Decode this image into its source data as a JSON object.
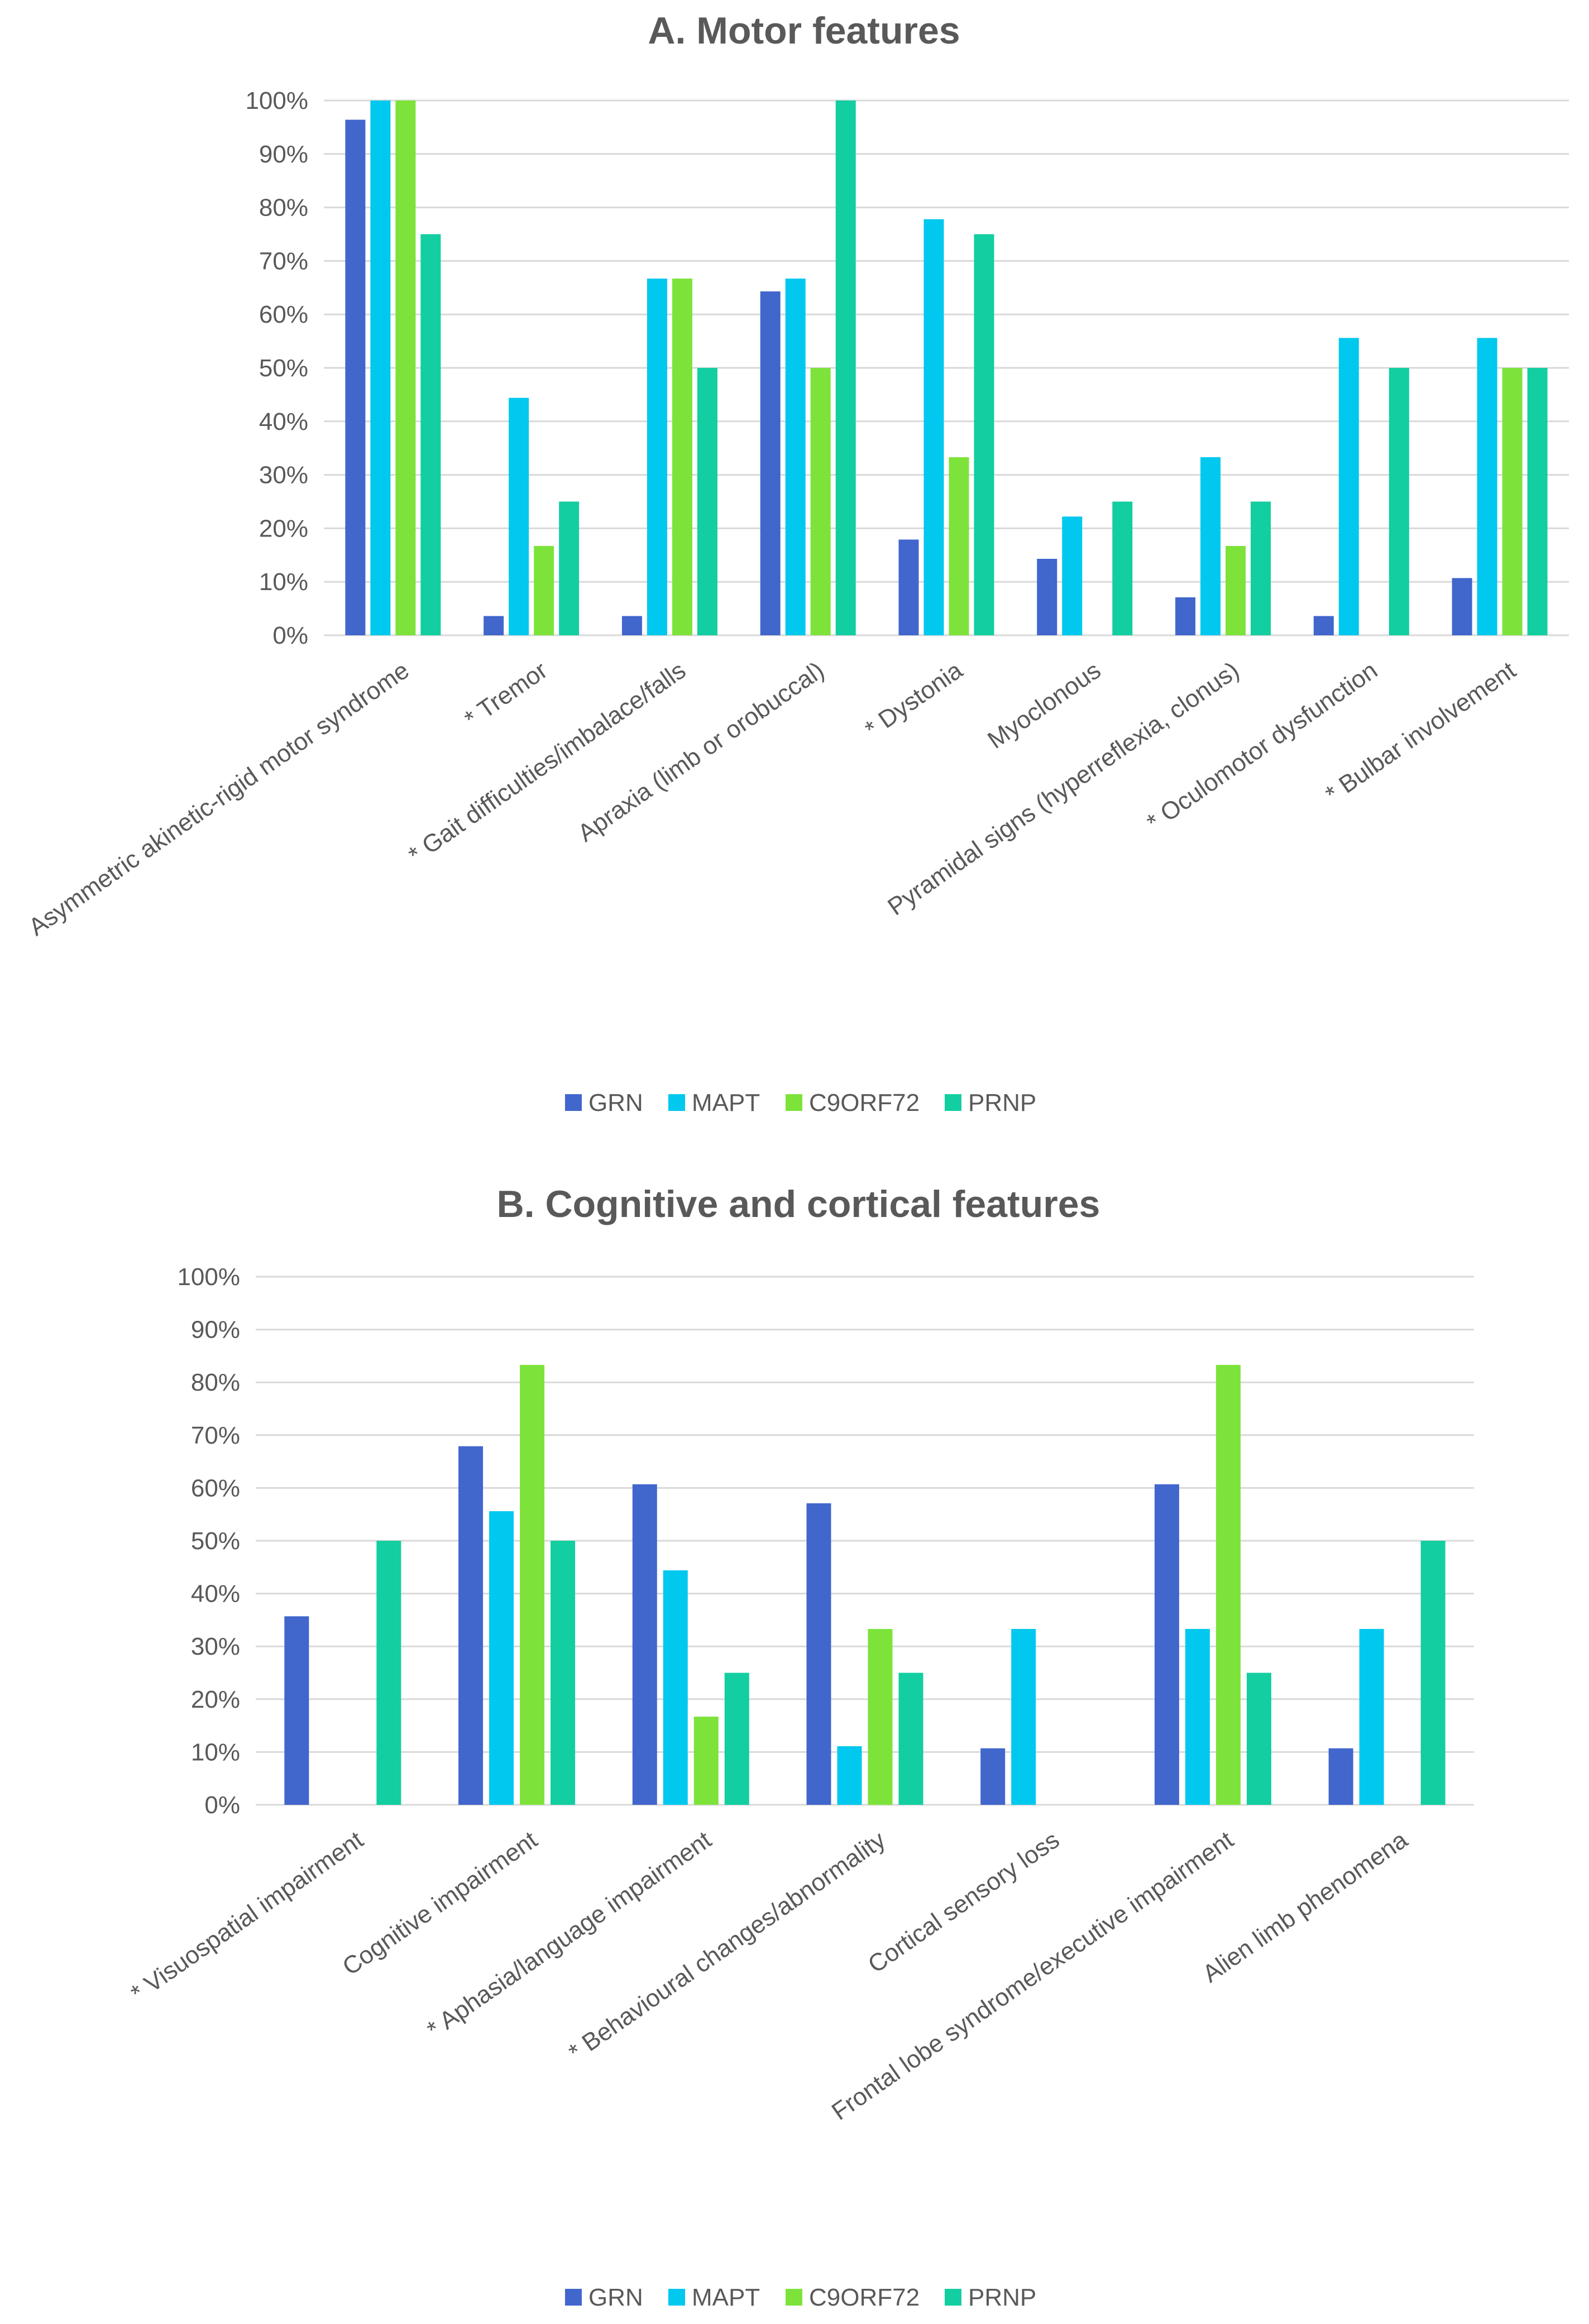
{
  "chart_data": [
    {
      "type": "bar",
      "title": "A. Motor features",
      "xlabel": "",
      "ylabel": "",
      "ylim": [
        0,
        100
      ],
      "yticks": [
        "0%",
        "10%",
        "20%",
        "30%",
        "40%",
        "50%",
        "60%",
        "70%",
        "80%",
        "90%",
        "100%"
      ],
      "grid": true,
      "legend_position": "bottom",
      "categories": [
        "Asymmetric akinetic-rigid motor syndrome",
        "* Tremor",
        "* Gait difficulties/imbalace/falls",
        "Apraxia (limb or orobuccal)",
        "* Dystonia",
        "Myoclonous",
        "Pyramidal signs (hyperreflexia, clonus)",
        "* Oculomotor dysfunction",
        "* Bulbar involvement"
      ],
      "series": [
        {
          "name": "GRN",
          "color": "#4166cc",
          "values": [
            96.4,
            3.6,
            3.6,
            64.3,
            17.9,
            14.3,
            7.1,
            3.6,
            10.7
          ]
        },
        {
          "name": "MAPT",
          "color": "#00c8ee",
          "values": [
            100,
            44.4,
            66.7,
            66.7,
            77.8,
            22.2,
            33.3,
            55.6,
            55.6
          ]
        },
        {
          "name": "C9ORF72",
          "color": "#7de33b",
          "values": [
            100,
            16.7,
            66.7,
            50,
            33.3,
            0,
            16.7,
            0,
            50
          ]
        },
        {
          "name": "PRNP",
          "color": "#12cea0",
          "values": [
            75,
            25,
            50,
            100,
            75,
            25,
            25,
            50,
            50
          ]
        }
      ]
    },
    {
      "type": "bar",
      "title": "B. Cognitive and cortical features",
      "xlabel": "",
      "ylabel": "",
      "ylim": [
        0,
        100
      ],
      "yticks": [
        "0%",
        "10%",
        "20%",
        "30%",
        "40%",
        "50%",
        "60%",
        "70%",
        "80%",
        "90%",
        "100%"
      ],
      "grid": true,
      "legend_position": "bottom",
      "categories": [
        "* Visuospatial impairment",
        "Cognitive impairment",
        "* Aphasia/language impairment",
        "* Behavioural changes/abnormality",
        "Cortical sensory loss",
        "Frontal lobe syndrome/executive impairment",
        "Alien limb phenomena"
      ],
      "series": [
        {
          "name": "GRN",
          "color": "#4166cc",
          "values": [
            35.7,
            67.9,
            60.7,
            57.1,
            10.7,
            60.7,
            10.7
          ]
        },
        {
          "name": "MAPT",
          "color": "#00c8ee",
          "values": [
            0,
            55.6,
            44.4,
            11.1,
            33.3,
            33.3,
            33.3
          ]
        },
        {
          "name": "C9ORF72",
          "color": "#7de33b",
          "values": [
            0,
            83.3,
            16.7,
            33.3,
            0,
            83.3,
            0
          ]
        },
        {
          "name": "PRNP",
          "color": "#12cea0",
          "values": [
            50,
            50,
            25,
            25,
            0,
            25,
            50
          ]
        }
      ]
    }
  ]
}
